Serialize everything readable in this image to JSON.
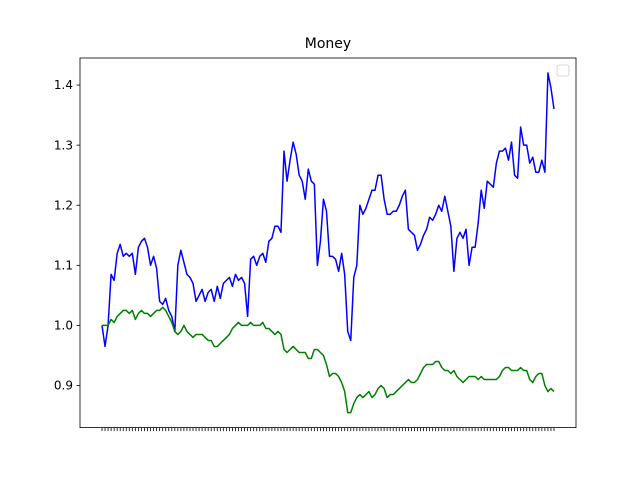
{
  "chart_data": {
    "type": "line",
    "title": "Money",
    "xlabel": "",
    "ylabel": "",
    "ylim": [
      0.83,
      1.445
    ],
    "yticks": [
      0.9,
      1.0,
      1.1,
      1.2,
      1.3,
      1.4
    ],
    "ytick_labels": [
      "0.9",
      "1.0",
      "1.1",
      "1.2",
      "1.3",
      "1.4"
    ],
    "grid": false,
    "legend": {
      "placement": "top-right",
      "entries": []
    },
    "x_note": "x tick labels are dense rotated date strings that overlap and are illegible",
    "n_points": 150,
    "series": [
      {
        "color": "#0000ff",
        "points": [
          [
            0,
            1.0
          ],
          [
            1,
            0.965
          ],
          [
            2,
            1.0
          ],
          [
            3,
            1.085
          ],
          [
            4,
            1.075
          ],
          [
            5,
            1.12
          ],
          [
            6,
            1.135
          ],
          [
            7,
            1.115
          ],
          [
            8,
            1.12
          ],
          [
            9,
            1.115
          ],
          [
            10,
            1.12
          ],
          [
            11,
            1.085
          ],
          [
            12,
            1.13
          ],
          [
            13,
            1.14
          ],
          [
            14,
            1.145
          ],
          [
            15,
            1.13
          ],
          [
            16,
            1.1
          ],
          [
            17,
            1.115
          ],
          [
            18,
            1.095
          ],
          [
            19,
            1.04
          ],
          [
            20,
            1.035
          ],
          [
            21,
            1.045
          ],
          [
            22,
            1.025
          ],
          [
            23,
            1.015
          ],
          [
            24,
            0.99
          ],
          [
            25,
            1.1
          ],
          [
            26,
            1.125
          ],
          [
            27,
            1.105
          ],
          [
            28,
            1.085
          ],
          [
            29,
            1.08
          ],
          [
            30,
            1.07
          ],
          [
            31,
            1.04
          ],
          [
            32,
            1.05
          ],
          [
            33,
            1.06
          ],
          [
            34,
            1.04
          ],
          [
            35,
            1.055
          ],
          [
            36,
            1.06
          ],
          [
            37,
            1.04
          ],
          [
            38,
            1.065
          ],
          [
            39,
            1.045
          ],
          [
            40,
            1.07
          ],
          [
            41,
            1.075
          ],
          [
            42,
            1.08
          ],
          [
            43,
            1.065
          ],
          [
            44,
            1.085
          ],
          [
            45,
            1.075
          ],
          [
            46,
            1.08
          ],
          [
            47,
            1.07
          ],
          [
            48,
            1.015
          ],
          [
            49,
            1.11
          ],
          [
            50,
            1.115
          ],
          [
            51,
            1.1
          ],
          [
            52,
            1.115
          ],
          [
            53,
            1.12
          ],
          [
            54,
            1.105
          ],
          [
            55,
            1.14
          ],
          [
            56,
            1.145
          ],
          [
            57,
            1.165
          ],
          [
            58,
            1.165
          ],
          [
            59,
            1.155
          ],
          [
            60,
            1.29
          ],
          [
            61,
            1.24
          ],
          [
            62,
            1.275
          ],
          [
            63,
            1.305
          ],
          [
            64,
            1.285
          ],
          [
            65,
            1.25
          ],
          [
            66,
            1.24
          ],
          [
            67,
            1.21
          ],
          [
            68,
            1.26
          ],
          [
            69,
            1.24
          ],
          [
            70,
            1.235
          ],
          [
            71,
            1.1
          ],
          [
            72,
            1.14
          ],
          [
            73,
            1.21
          ],
          [
            74,
            1.19
          ],
          [
            75,
            1.115
          ],
          [
            76,
            1.115
          ],
          [
            77,
            1.11
          ],
          [
            78,
            1.09
          ],
          [
            79,
            1.12
          ],
          [
            80,
            1.085
          ],
          [
            81,
            0.99
          ],
          [
            82,
            0.975
          ],
          [
            83,
            1.08
          ],
          [
            84,
            1.1
          ],
          [
            85,
            1.2
          ],
          [
            86,
            1.185
          ],
          [
            87,
            1.195
          ],
          [
            88,
            1.21
          ],
          [
            89,
            1.225
          ],
          [
            90,
            1.225
          ],
          [
            91,
            1.25
          ],
          [
            92,
            1.25
          ],
          [
            93,
            1.21
          ],
          [
            94,
            1.185
          ],
          [
            95,
            1.185
          ],
          [
            96,
            1.19
          ],
          [
            97,
            1.19
          ],
          [
            98,
            1.2
          ],
          [
            99,
            1.215
          ],
          [
            100,
            1.225
          ],
          [
            101,
            1.16
          ],
          [
            102,
            1.155
          ],
          [
            103,
            1.15
          ],
          [
            104,
            1.125
          ],
          [
            105,
            1.135
          ],
          [
            106,
            1.15
          ],
          [
            107,
            1.16
          ],
          [
            108,
            1.18
          ],
          [
            109,
            1.175
          ],
          [
            110,
            1.185
          ],
          [
            111,
            1.2
          ],
          [
            112,
            1.19
          ],
          [
            113,
            1.215
          ],
          [
            114,
            1.19
          ],
          [
            115,
            1.165
          ],
          [
            116,
            1.09
          ],
          [
            117,
            1.145
          ],
          [
            118,
            1.155
          ],
          [
            119,
            1.145
          ],
          [
            120,
            1.16
          ],
          [
            121,
            1.1
          ],
          [
            122,
            1.13
          ],
          [
            123,
            1.13
          ],
          [
            124,
            1.17
          ],
          [
            125,
            1.225
          ],
          [
            126,
            1.195
          ],
          [
            127,
            1.24
          ],
          [
            128,
            1.235
          ],
          [
            129,
            1.23
          ],
          [
            130,
            1.27
          ],
          [
            131,
            1.29
          ],
          [
            132,
            1.29
          ],
          [
            133,
            1.295
          ],
          [
            134,
            1.275
          ],
          [
            135,
            1.305
          ],
          [
            136,
            1.25
          ],
          [
            137,
            1.245
          ],
          [
            138,
            1.33
          ],
          [
            139,
            1.3
          ],
          [
            140,
            1.3
          ],
          [
            141,
            1.27
          ],
          [
            142,
            1.28
          ],
          [
            143,
            1.255
          ],
          [
            144,
            1.255
          ],
          [
            145,
            1.275
          ],
          [
            146,
            1.255
          ],
          [
            147,
            1.42
          ],
          [
            148,
            1.395
          ],
          [
            149,
            1.36
          ]
        ]
      },
      {
        "color": "#008000",
        "points": [
          [
            0,
            1.0
          ],
          [
            1,
            1.0
          ],
          [
            2,
            1.0
          ],
          [
            3,
            1.01
          ],
          [
            4,
            1.005
          ],
          [
            5,
            1.015
          ],
          [
            6,
            1.02
          ],
          [
            7,
            1.025
          ],
          [
            8,
            1.025
          ],
          [
            9,
            1.02
          ],
          [
            10,
            1.025
          ],
          [
            11,
            1.01
          ],
          [
            12,
            1.02
          ],
          [
            13,
            1.025
          ],
          [
            14,
            1.02
          ],
          [
            15,
            1.02
          ],
          [
            16,
            1.015
          ],
          [
            17,
            1.02
          ],
          [
            18,
            1.025
          ],
          [
            19,
            1.025
          ],
          [
            20,
            1.03
          ],
          [
            21,
            1.025
          ],
          [
            22,
            1.015
          ],
          [
            23,
            1.005
          ],
          [
            24,
            0.99
          ],
          [
            25,
            0.985
          ],
          [
            26,
            0.99
          ],
          [
            27,
            1.0
          ],
          [
            28,
            0.99
          ],
          [
            29,
            0.985
          ],
          [
            30,
            0.98
          ],
          [
            31,
            0.985
          ],
          [
            32,
            0.985
          ],
          [
            33,
            0.985
          ],
          [
            34,
            0.98
          ],
          [
            35,
            0.975
          ],
          [
            36,
            0.975
          ],
          [
            37,
            0.965
          ],
          [
            38,
            0.965
          ],
          [
            39,
            0.97
          ],
          [
            40,
            0.975
          ],
          [
            41,
            0.98
          ],
          [
            42,
            0.985
          ],
          [
            43,
            0.995
          ],
          [
            44,
            1.0
          ],
          [
            45,
            1.005
          ],
          [
            46,
            1.0
          ],
          [
            47,
            1.0
          ],
          [
            48,
            1.0
          ],
          [
            49,
            1.005
          ],
          [
            50,
            1.0
          ],
          [
            51,
            1.0
          ],
          [
            52,
            1.0
          ],
          [
            53,
            1.005
          ],
          [
            54,
            0.995
          ],
          [
            55,
            0.995
          ],
          [
            56,
            0.99
          ],
          [
            57,
            0.985
          ],
          [
            58,
            0.99
          ],
          [
            59,
            0.985
          ],
          [
            60,
            0.96
          ],
          [
            61,
            0.955
          ],
          [
            62,
            0.96
          ],
          [
            63,
            0.965
          ],
          [
            64,
            0.96
          ],
          [
            65,
            0.955
          ],
          [
            66,
            0.955
          ],
          [
            67,
            0.955
          ],
          [
            68,
            0.945
          ],
          [
            69,
            0.945
          ],
          [
            70,
            0.96
          ],
          [
            71,
            0.96
          ],
          [
            72,
            0.955
          ],
          [
            73,
            0.95
          ],
          [
            74,
            0.935
          ],
          [
            75,
            0.915
          ],
          [
            76,
            0.92
          ],
          [
            77,
            0.92
          ],
          [
            78,
            0.915
          ],
          [
            79,
            0.905
          ],
          [
            80,
            0.89
          ],
          [
            81,
            0.855
          ],
          [
            82,
            0.855
          ],
          [
            83,
            0.87
          ],
          [
            84,
            0.88
          ],
          [
            85,
            0.885
          ],
          [
            86,
            0.88
          ],
          [
            87,
            0.885
          ],
          [
            88,
            0.89
          ],
          [
            89,
            0.88
          ],
          [
            90,
            0.885
          ],
          [
            91,
            0.895
          ],
          [
            92,
            0.9
          ],
          [
            93,
            0.895
          ],
          [
            94,
            0.88
          ],
          [
            95,
            0.885
          ],
          [
            96,
            0.885
          ],
          [
            97,
            0.89
          ],
          [
            98,
            0.895
          ],
          [
            99,
            0.9
          ],
          [
            100,
            0.905
          ],
          [
            101,
            0.91
          ],
          [
            102,
            0.905
          ],
          [
            103,
            0.905
          ],
          [
            104,
            0.91
          ],
          [
            105,
            0.92
          ],
          [
            106,
            0.93
          ],
          [
            107,
            0.935
          ],
          [
            108,
            0.935
          ],
          [
            109,
            0.935
          ],
          [
            110,
            0.94
          ],
          [
            111,
            0.94
          ],
          [
            112,
            0.93
          ],
          [
            113,
            0.925
          ],
          [
            114,
            0.925
          ],
          [
            115,
            0.92
          ],
          [
            116,
            0.925
          ],
          [
            117,
            0.915
          ],
          [
            118,
            0.91
          ],
          [
            119,
            0.905
          ],
          [
            120,
            0.91
          ],
          [
            121,
            0.915
          ],
          [
            122,
            0.915
          ],
          [
            123,
            0.915
          ],
          [
            124,
            0.91
          ],
          [
            125,
            0.915
          ],
          [
            126,
            0.91
          ],
          [
            127,
            0.91
          ],
          [
            128,
            0.91
          ],
          [
            129,
            0.91
          ],
          [
            130,
            0.91
          ],
          [
            131,
            0.915
          ],
          [
            132,
            0.925
          ],
          [
            133,
            0.93
          ],
          [
            134,
            0.93
          ],
          [
            135,
            0.925
          ],
          [
            136,
            0.925
          ],
          [
            137,
            0.925
          ],
          [
            138,
            0.93
          ],
          [
            139,
            0.925
          ],
          [
            140,
            0.925
          ],
          [
            141,
            0.91
          ],
          [
            142,
            0.905
          ],
          [
            143,
            0.915
          ],
          [
            144,
            0.92
          ],
          [
            145,
            0.92
          ],
          [
            146,
            0.9
          ],
          [
            147,
            0.89
          ],
          [
            148,
            0.895
          ],
          [
            149,
            0.89
          ]
        ]
      }
    ]
  }
}
